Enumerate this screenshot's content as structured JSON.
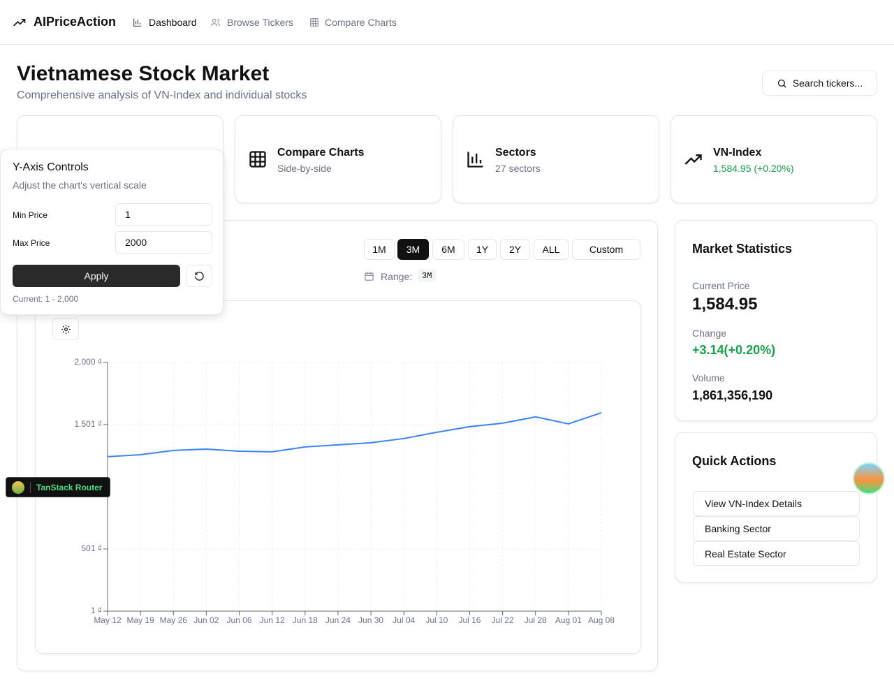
{
  "nav": {
    "brand": "AIPriceAction",
    "links": [
      "Dashboard",
      "Browse Tickers",
      "Compare Charts"
    ]
  },
  "header": {
    "title": "Vietnamese Stock Market",
    "subtitle": "Comprehensive analysis of VN-Index and individual stocks",
    "search": "Search tickers..."
  },
  "cards": [
    {
      "title": "Compare Charts",
      "subtitle": "Side-by-side"
    },
    {
      "title": "Sectors",
      "subtitle": "27 sectors"
    },
    {
      "title": "VN-Index",
      "subtitle": "1,584.95 (+0.20%)"
    }
  ],
  "ranges": [
    "1M",
    "3M",
    "6M",
    "1Y",
    "2Y",
    "ALL",
    "Custom"
  ],
  "range_label": "Range:",
  "range_value": "3M",
  "popover": {
    "title": "Y-Axis Controls",
    "subtitle": "Adjust the chart's vertical scale",
    "min_label": "Min Price",
    "min_value": "1",
    "max_label": "Max Price",
    "max_value": "2000",
    "apply": "Apply",
    "current": "Current: 1 - 2,000"
  },
  "stats": {
    "title": "Market Statistics",
    "items": [
      {
        "label": "Current Price",
        "value": "1,584.95"
      },
      {
        "label": "Change",
        "value": "+3.14(+0.20%)"
      },
      {
        "label": "Volume",
        "value": "1,861,356,190"
      }
    ]
  },
  "quick_actions": {
    "title": "Quick Actions",
    "items": [
      "View VN-Index Details",
      "Banking Sector",
      "Real Estate Sector"
    ]
  },
  "badge": "TanStack Router",
  "chart_data": {
    "type": "line",
    "categories": [
      "May 12",
      "May 19",
      "May 26",
      "Jun 02",
      "Jun 06",
      "Jun 12",
      "Jun 18",
      "Jun 24",
      "Jun 30",
      "Jul 04",
      "Jul 10",
      "Jul 16",
      "Jul 22",
      "Jul 28",
      "Aug 01",
      "Aug 08"
    ],
    "series": [
      {
        "name": "VN-Index",
        "color": "#3b82f6",
        "values": [
          1243,
          1259,
          1293,
          1304,
          1287,
          1282,
          1321,
          1338,
          1355,
          1389,
          1439,
          1484,
          1512,
          1563,
          1507,
          1596
        ]
      }
    ],
    "ylim": [
      1,
      2000
    ],
    "yticks": [
      {
        "value": 1,
        "label": "1 ₫"
      },
      {
        "value": 501,
        "label": "501 ₫"
      },
      {
        "value": 1501,
        "label": "1.501 ₫"
      },
      {
        "value": 2000,
        "label": "2.000 ₫"
      }
    ],
    "grid": true
  }
}
